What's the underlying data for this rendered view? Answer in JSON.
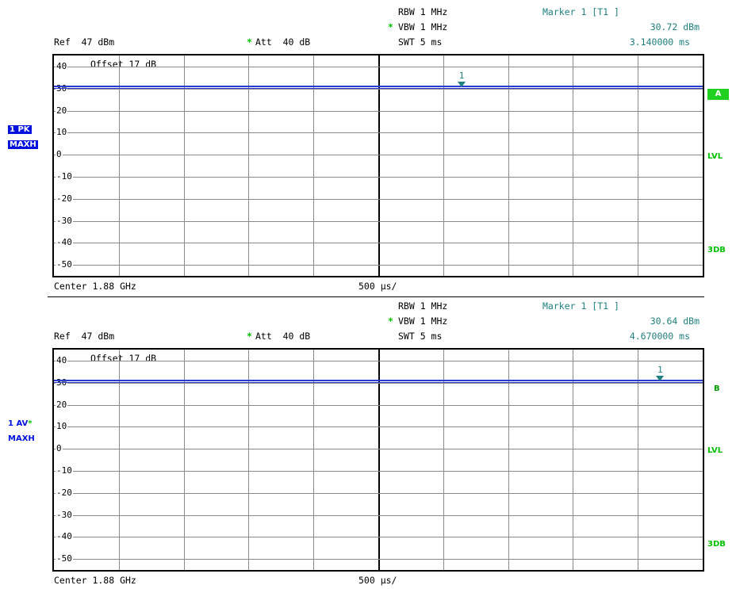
{
  "colors": {
    "trace": "#2a3bd0",
    "marker": "#208080",
    "status_green": "#00c000",
    "label_blue": "#0010e0"
  },
  "chart_data": [
    {
      "type": "line",
      "panel_badge": "A",
      "header": {
        "rbw": "RBW 1 MHz",
        "vbw": "VBW 1 MHz",
        "vbw_star": "*",
        "swt": "SWT 5 ms",
        "ref": "Ref  47 dBm",
        "att": "Att  40 dB",
        "att_star": "*",
        "marker_title": "Marker 1 [T1 ]",
        "marker_level": "30.72 dBm",
        "marker_time": "3.140000 ms"
      },
      "trace_label_1": "1 PK",
      "trace_label_2": "MAXH",
      "trace_label_star": "",
      "offset": "Offset  17 dB",
      "y_ticks": [
        "40",
        "30",
        "20",
        "10",
        "0",
        "-10",
        "-20",
        "-30",
        "-40",
        "-50"
      ],
      "ylim": [
        -55,
        45
      ],
      "x_range_ms": [
        0,
        5
      ],
      "series": [
        {
          "x": [
            0,
            5
          ],
          "y": [
            30.72,
            30.72
          ]
        }
      ],
      "marker": {
        "label": "1",
        "x_ms": 3.14,
        "y_dbm": 30.72
      },
      "side": {
        "lvl": "LVL",
        "db3": "3DB"
      },
      "footer": {
        "center": "Center 1.88 GHz",
        "span": "500 µs/"
      }
    },
    {
      "type": "line",
      "panel_badge": "B",
      "header": {
        "rbw": "RBW 1 MHz",
        "vbw": "VBW 1 MHz",
        "vbw_star": "*",
        "swt": "SWT 5 ms",
        "ref": "Ref  47 dBm",
        "att": "Att  40 dB",
        "att_star": "*",
        "marker_title": "Marker 1 [T1 ]",
        "marker_level": "30.64 dBm",
        "marker_time": "4.670000 ms"
      },
      "trace_label_1": "1 AV",
      "trace_label_2": "MAXH",
      "trace_label_star": "*",
      "offset": "Offset  17 dB",
      "y_ticks": [
        "40",
        "30",
        "20",
        "10",
        "0",
        "-10",
        "-20",
        "-30",
        "-40",
        "-50"
      ],
      "ylim": [
        -55,
        45
      ],
      "x_range_ms": [
        0,
        5
      ],
      "series": [
        {
          "x": [
            0,
            5
          ],
          "y": [
            30.64,
            30.64
          ]
        }
      ],
      "marker": {
        "label": "1",
        "x_ms": 4.67,
        "y_dbm": 30.64
      },
      "side": {
        "lvl": "LVL",
        "db3": "3DB"
      },
      "footer": {
        "center": "Center 1.88 GHz",
        "span": "500 µs/"
      }
    }
  ]
}
